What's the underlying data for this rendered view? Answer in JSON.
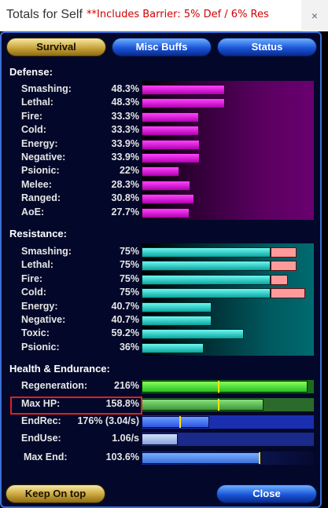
{
  "window": {
    "title": "Totals for Self",
    "note": "**Includes Barrier:  5% Def / 6% Res",
    "close_label": "×"
  },
  "tabs": [
    {
      "label": "Survival"
    },
    {
      "label": "Misc Buffs"
    },
    {
      "label": "Status"
    }
  ],
  "defense": {
    "heading": "Defense:",
    "rows": [
      {
        "label": "Smashing:",
        "value": "48.3%",
        "pct": 48.3
      },
      {
        "label": "Lethal:",
        "value": "48.3%",
        "pct": 48.3
      },
      {
        "label": "Fire:",
        "value": "33.3%",
        "pct": 33.3
      },
      {
        "label": "Cold:",
        "value": "33.3%",
        "pct": 33.3
      },
      {
        "label": "Energy:",
        "value": "33.9%",
        "pct": 33.9
      },
      {
        "label": "Negative:",
        "value": "33.9%",
        "pct": 33.9
      },
      {
        "label": "Psionic:",
        "value": "22%",
        "pct": 22
      },
      {
        "label": "Melee:",
        "value": "28.3%",
        "pct": 28.3
      },
      {
        "label": "Ranged:",
        "value": "30.8%",
        "pct": 30.8
      },
      {
        "label": "AoE:",
        "value": "27.7%",
        "pct": 27.7
      }
    ]
  },
  "resistance": {
    "heading": "Resistance:",
    "rows": [
      {
        "label": "Smashing:",
        "value": "75%",
        "pct": 75,
        "uncapped_pct": 90
      },
      {
        "label": "Lethal:",
        "value": "75%",
        "pct": 75,
        "uncapped_pct": 90
      },
      {
        "label": "Fire:",
        "value": "75%",
        "pct": 75,
        "uncapped_pct": 85
      },
      {
        "label": "Cold:",
        "value": "75%",
        "pct": 75,
        "uncapped_pct": 95
      },
      {
        "label": "Energy:",
        "value": "40.7%",
        "pct": 40.7
      },
      {
        "label": "Negative:",
        "value": "40.7%",
        "pct": 40.7
      },
      {
        "label": "Toxic:",
        "value": "59.2%",
        "pct": 59.2
      },
      {
        "label": "Psionic:",
        "value": "36%",
        "pct": 36
      }
    ]
  },
  "health": {
    "heading": "Health & Endurance:",
    "rows": [
      {
        "key": "regen",
        "label": "Regeneration:",
        "value": "216%"
      },
      {
        "key": "maxhp",
        "label": "Max HP:",
        "value": "158.8%"
      },
      {
        "key": "endrec",
        "label": "EndRec:",
        "value": "176% (3.04/s)"
      },
      {
        "key": "enduse",
        "label": "EndUse:",
        "value": "1.06/s"
      },
      {
        "key": "maxend",
        "label": "Max End:",
        "value": "103.6%"
      }
    ]
  },
  "footer": {
    "keep_on_top": "Keep On top",
    "close": "Close"
  },
  "colors": {
    "defense_bar": "#e000e0",
    "resistance_bar": "#20d0d0",
    "resistance_over": "#ff9a9a",
    "regen_bar": "#30e030",
    "endurance_bar": "#3a6fff",
    "highlight_box": "#e02020"
  }
}
